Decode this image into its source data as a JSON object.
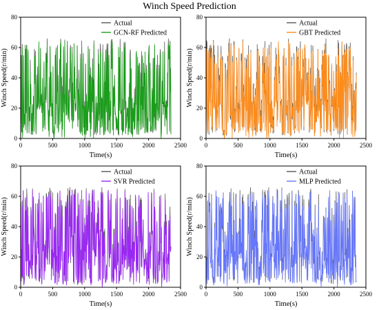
{
  "title": "Winch Speed Prediction",
  "chart_data": [
    {
      "type": "line",
      "xlabel": "Time(s)",
      "ylabel": "Winch Speed(r/min)",
      "xlim": [
        0,
        2500
      ],
      "ylim": [
        0,
        80
      ],
      "xticks": [
        "0",
        "500",
        "1000",
        "1500",
        "2000",
        "2500"
      ],
      "yticks": [
        "0",
        "20",
        "40",
        "60",
        "80"
      ],
      "legend_position": "top-left",
      "series": [
        {
          "name": "Actual",
          "color": "#555555"
        },
        {
          "name": "GCN-RF Predicted",
          "color": "#1a9e1a"
        }
      ],
      "seed": 11
    },
    {
      "type": "line",
      "xlabel": "Time(s)",
      "ylabel": "Winch Speed(r/min)",
      "xlim": [
        0,
        2500
      ],
      "ylim": [
        0,
        80
      ],
      "xticks": [
        "0",
        "500",
        "1000",
        "1500",
        "2000",
        "2500"
      ],
      "yticks": [
        "0",
        "20",
        "40",
        "60",
        "80"
      ],
      "legend_position": "top-left",
      "series": [
        {
          "name": "Actual",
          "color": "#555555"
        },
        {
          "name": "GBT Predicted",
          "color": "#ff8c1a"
        }
      ],
      "seed": 23
    },
    {
      "type": "line",
      "xlabel": "Time(s)",
      "ylabel": "Winch Speed(r/min)",
      "xlim": [
        0,
        2500
      ],
      "ylim": [
        0,
        80
      ],
      "xticks": [
        "0",
        "500",
        "1000",
        "1500",
        "2000",
        "2500"
      ],
      "yticks": [
        "0",
        "20",
        "40",
        "60",
        "80"
      ],
      "legend_position": "top-left",
      "series": [
        {
          "name": "Actual",
          "color": "#555555"
        },
        {
          "name": "SVR Predicted",
          "color": "#9b27f5"
        }
      ],
      "seed": 37
    },
    {
      "type": "line",
      "xlabel": "Time(s)",
      "ylabel": "Winch Speed(r/min)",
      "xlim": [
        0,
        2500
      ],
      "ylim": [
        0,
        80
      ],
      "xticks": [
        "0",
        "500",
        "1000",
        "1500",
        "2000",
        "2500"
      ],
      "yticks": [
        "0",
        "20",
        "40",
        "60",
        "80"
      ],
      "legend_position": "top-left",
      "series": [
        {
          "name": "Actual",
          "color": "#555555"
        },
        {
          "name": "MLP Predicted",
          "color": "#6677ff"
        }
      ],
      "seed": 53
    }
  ]
}
